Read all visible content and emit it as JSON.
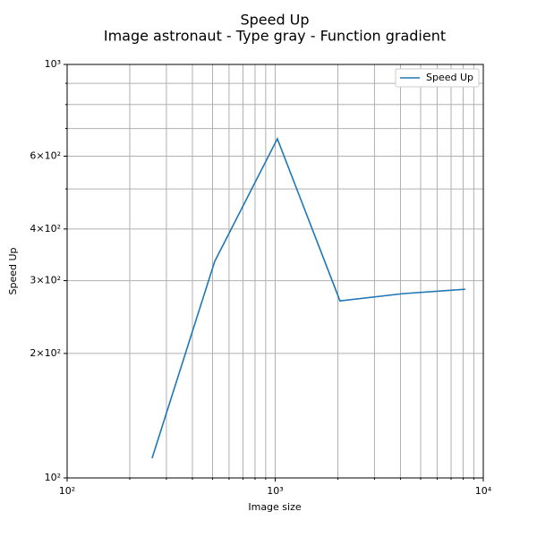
{
  "chart_data": {
    "type": "line",
    "title": "Speed Up",
    "subtitle": "Image astronaut - Type gray - Function gradient",
    "xlabel": "Image size",
    "ylabel": "Speed Up",
    "x": [
      256,
      512,
      1024,
      2048,
      4096,
      8192
    ],
    "series": [
      {
        "name": "Speed Up",
        "color": "#1f77b4",
        "values": [
          111.6,
          334,
          661,
          268,
          279,
          286
        ]
      }
    ],
    "xscale": "log",
    "yscale": "log",
    "xlim": [
      100,
      10000
    ],
    "ylim": [
      100,
      1000
    ],
    "xticks": [
      {
        "value": 100,
        "label": "10²"
      },
      {
        "value": 1000,
        "label": "10³"
      },
      {
        "value": 10000,
        "label": "10⁴"
      }
    ],
    "xminorticks": [
      200,
      300,
      400,
      500,
      600,
      700,
      800,
      900,
      2000,
      3000,
      4000,
      5000,
      6000,
      7000,
      8000,
      9000
    ],
    "yticks": [
      {
        "value": 100,
        "label": "10²"
      },
      {
        "value": 200,
        "label": "2×10²"
      },
      {
        "value": 300,
        "label": "3×10²"
      },
      {
        "value": 400,
        "label": "4×10²"
      },
      {
        "value": 600,
        "label": "6×10²"
      },
      {
        "value": 1000,
        "label": "10³"
      }
    ],
    "yminorticks": [
      500,
      700,
      800,
      900
    ],
    "grid": true,
    "legend": "upper right"
  }
}
